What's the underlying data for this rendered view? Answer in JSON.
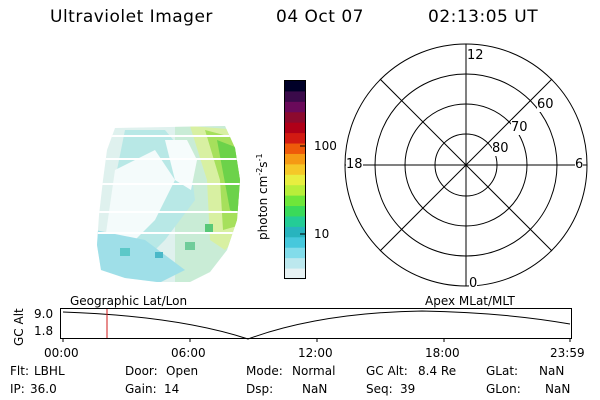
{
  "header": {
    "instrument": "Ultraviolet Imager",
    "date": "04 Oct 07",
    "time": "02:13:05 UT"
  },
  "colorbar": {
    "label": "photon cm-2s-1",
    "ticks": [
      "100",
      "10"
    ],
    "colors": [
      "#000028",
      "#3a0a4a",
      "#6a0a5a",
      "#8c0a2e",
      "#b00018",
      "#d21a12",
      "#ee5a0a",
      "#f59a14",
      "#f5c828",
      "#e8ee40",
      "#b8ee3a",
      "#6ee63a",
      "#3ada5a",
      "#24cc96",
      "#28b4be",
      "#46c8dc",
      "#82dcea",
      "#bce8ee",
      "#e6f2f4"
    ]
  },
  "polar_grid": {
    "mlt_labels": {
      "top": "12",
      "left": "18",
      "right": "6",
      "bottom": "0"
    },
    "lat_labels": [
      "60",
      "70",
      "80"
    ]
  },
  "image_panel": {
    "title": "Geographic Lat/Lon",
    "apex_title": "Apex MLat/MLT"
  },
  "timeline": {
    "ylabel": "GC Alt",
    "ytick_high": "9.0",
    "ytick_low": "1.8",
    "xticks": [
      "00:00",
      "06:00",
      "12:00",
      "18:00",
      "23:59"
    ]
  },
  "status": {
    "row1": [
      {
        "label": "Flt:",
        "value": "LBHL"
      },
      {
        "label": "Door:",
        "value": "Open"
      },
      {
        "label": "Mode:",
        "value": "Normal"
      },
      {
        "label": "GC Alt:",
        "value": "8.4 Re"
      },
      {
        "label": "GLat:",
        "value": "NaN"
      }
    ],
    "row2": [
      {
        "label": "IP:",
        "value": "36.0"
      },
      {
        "label": "Gain:",
        "value": "14"
      },
      {
        "label": "Dsp:",
        "value": "NaN"
      },
      {
        "label": "Seq:",
        "value": "39"
      },
      {
        "label": "GLon:",
        "value": "NaN"
      }
    ]
  }
}
